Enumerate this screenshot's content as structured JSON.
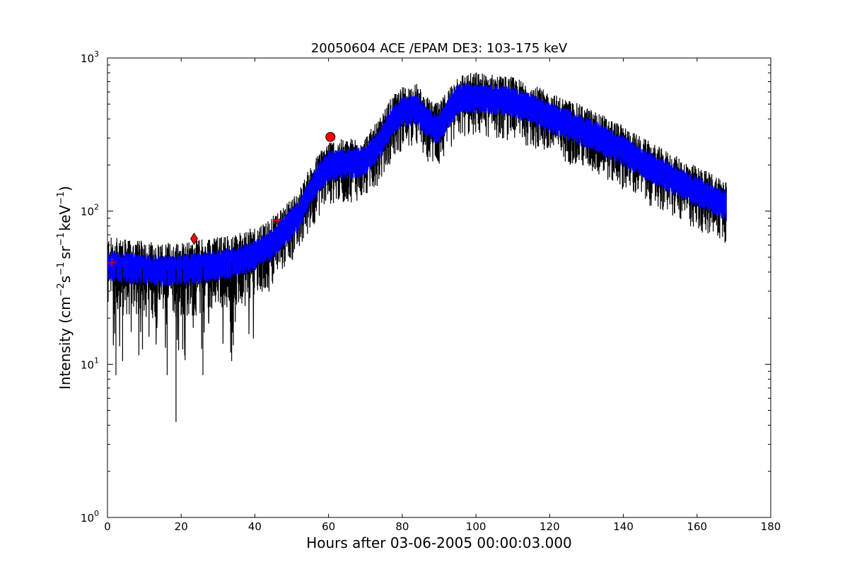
{
  "chart_data": {
    "type": "line",
    "title": "20050604 ACE /EPAM DE3: 103-175 keV",
    "xlabel": "Hours after 03-06-2005 00:00:03.000",
    "ylabel": {
      "base": "Intensity (cm",
      "sup1": "−2",
      "mid1": "s",
      "sup2": "−1",
      "mid2": "sr",
      "sup3": "−1",
      "mid3": "keV",
      "sup4": "−1",
      "end": ")"
    },
    "xlim": [
      0,
      180
    ],
    "ylim": [
      1,
      1000
    ],
    "yscale": "log",
    "grid": false,
    "x_ticks": [
      0,
      20,
      40,
      60,
      80,
      100,
      120,
      140,
      160,
      180
    ],
    "x_tick_labels": [
      "0",
      "20",
      "40",
      "60",
      "80",
      "100",
      "120",
      "140",
      "160",
      "180"
    ],
    "y_ticks": [
      {
        "value": 1,
        "base": "10",
        "exp": "0"
      },
      {
        "value": 10,
        "base": "10",
        "exp": "1"
      },
      {
        "value": 100,
        "base": "10",
        "exp": "2"
      },
      {
        "value": 1000,
        "base": "10",
        "exp": "3"
      }
    ],
    "colors": {
      "raw": "#000000",
      "smoothed": "#0000ff",
      "markers": "#ff0000"
    },
    "series": [
      {
        "style": "raw-noisy",
        "color": "#000000",
        "x": [
          0,
          2,
          5,
          10,
          15,
          20,
          25,
          30,
          35,
          40,
          45,
          48,
          52,
          55,
          58,
          60,
          65,
          70,
          74,
          77,
          80,
          82,
          84,
          86,
          88,
          90,
          92,
          95,
          100,
          105,
          110,
          115,
          120,
          125,
          130,
          135,
          140,
          145,
          150,
          155,
          160,
          165,
          168
        ],
        "y": [
          45,
          44,
          43,
          42,
          41,
          42,
          43,
          45,
          47,
          52,
          62,
          75,
          95,
          135,
          175,
          200,
          205,
          215,
          280,
          380,
          450,
          460,
          470,
          400,
          360,
          350,
          420,
          540,
          560,
          540,
          520,
          470,
          410,
          370,
          330,
          290,
          250,
          210,
          180,
          155,
          135,
          120,
          110
        ],
        "low_factor": 0.55,
        "high_factor": 1.45
      },
      {
        "style": "smoothed-band",
        "color": "#0000ff",
        "x": [
          0,
          2,
          5,
          10,
          15,
          20,
          25,
          30,
          35,
          40,
          45,
          48,
          52,
          55,
          58,
          60,
          65,
          70,
          74,
          77,
          80,
          82,
          84,
          86,
          88,
          90,
          92,
          95,
          100,
          105,
          110,
          115,
          120,
          125,
          130,
          135,
          140,
          145,
          150,
          155,
          160,
          165,
          168
        ],
        "y": [
          45,
          44,
          43,
          42,
          41,
          42,
          43,
          45,
          47,
          52,
          62,
          75,
          95,
          135,
          175,
          200,
          205,
          215,
          280,
          380,
          450,
          460,
          470,
          400,
          360,
          350,
          420,
          540,
          560,
          540,
          520,
          470,
          410,
          370,
          330,
          290,
          250,
          210,
          180,
          155,
          135,
          120,
          110
        ],
        "low_factor": 0.78,
        "high_factor": 1.25
      }
    ],
    "markers": [
      {
        "shape": "plus",
        "x": 1.2,
        "y": 46,
        "color": "#ff0000"
      },
      {
        "shape": "diamond",
        "x": 23.5,
        "y": 66,
        "color": "#ff0000"
      },
      {
        "shape": "plus",
        "x": 46,
        "y": 87,
        "color": "#ff0000"
      },
      {
        "shape": "circle",
        "x": 60.5,
        "y": 305,
        "color": "#ff0000"
      }
    ]
  }
}
